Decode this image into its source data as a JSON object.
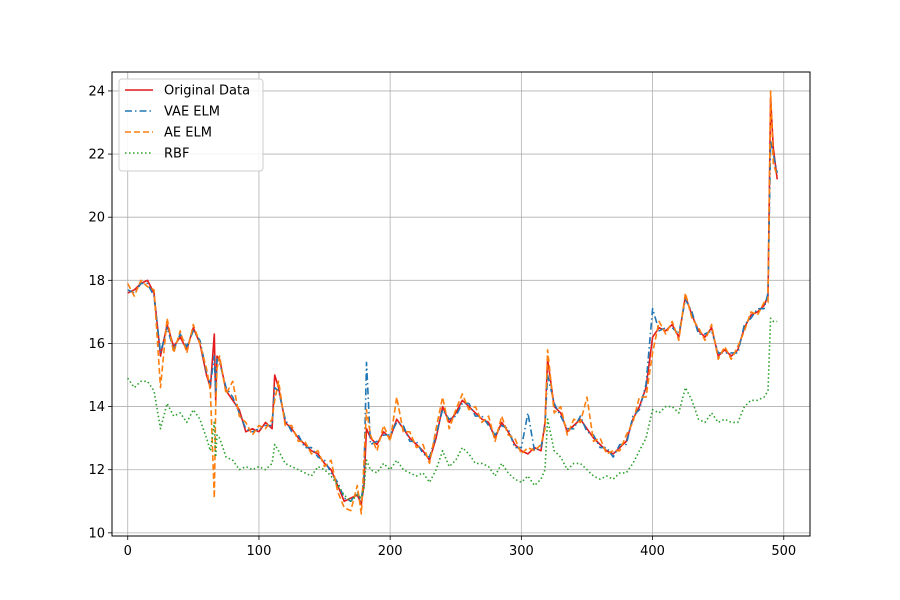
{
  "chart_data": {
    "type": "line",
    "title": "",
    "xlabel": "",
    "ylabel": "",
    "xlim": [
      -12,
      520
    ],
    "ylim": [
      9.9,
      24.6
    ],
    "xticks": [
      0,
      100,
      200,
      300,
      400,
      500
    ],
    "yticks": [
      10,
      12,
      14,
      16,
      18,
      20,
      22,
      24
    ],
    "grid": true,
    "legend_position": "upper-left",
    "x": [
      0,
      5,
      10,
      15,
      20,
      25,
      30,
      35,
      40,
      45,
      50,
      55,
      60,
      63,
      66,
      67,
      68,
      70,
      75,
      80,
      85,
      90,
      95,
      100,
      105,
      110,
      112,
      115,
      120,
      125,
      130,
      135,
      140,
      145,
      150,
      155,
      160,
      165,
      170,
      175,
      178,
      180,
      182,
      185,
      190,
      195,
      200,
      205,
      210,
      215,
      220,
      225,
      230,
      235,
      240,
      245,
      250,
      255,
      260,
      265,
      270,
      275,
      280,
      285,
      290,
      295,
      300,
      305,
      310,
      315,
      318,
      320,
      325,
      330,
      335,
      340,
      345,
      350,
      355,
      360,
      365,
      370,
      375,
      380,
      385,
      390,
      395,
      400,
      405,
      410,
      415,
      420,
      425,
      430,
      435,
      440,
      445,
      450,
      455,
      460,
      465,
      470,
      475,
      480,
      485,
      488,
      490,
      492,
      495
    ],
    "series": [
      {
        "name": "Original Data",
        "color": "#e41a1c",
        "dash": "solid",
        "values": [
          17.6,
          17.7,
          17.9,
          18.0,
          17.6,
          15.6,
          16.6,
          15.9,
          16.2,
          15.8,
          16.5,
          16.0,
          15.0,
          14.6,
          16.3,
          14.2,
          15.6,
          15.5,
          14.5,
          14.2,
          13.9,
          13.2,
          13.3,
          13.2,
          13.5,
          13.3,
          15.0,
          14.6,
          13.5,
          13.3,
          13.0,
          12.8,
          12.6,
          12.5,
          12.2,
          12.0,
          11.5,
          11.0,
          11.1,
          11.2,
          10.9,
          11.5,
          13.3,
          13.0,
          12.8,
          13.2,
          13.0,
          13.6,
          13.3,
          13.0,
          12.8,
          12.6,
          12.3,
          13.0,
          14.0,
          13.5,
          13.8,
          14.2,
          14.0,
          13.8,
          13.6,
          13.5,
          13.0,
          13.5,
          13.2,
          12.8,
          12.6,
          12.5,
          12.7,
          12.6,
          13.5,
          15.5,
          14.0,
          13.8,
          13.2,
          13.4,
          13.6,
          13.3,
          13.0,
          12.8,
          12.6,
          12.5,
          12.7,
          12.9,
          13.6,
          14.0,
          14.6,
          16.2,
          16.5,
          16.4,
          16.6,
          16.2,
          17.5,
          16.9,
          16.4,
          16.2,
          16.5,
          15.6,
          15.8,
          15.6,
          15.8,
          16.5,
          16.9,
          17.0,
          17.2,
          17.5,
          23.8,
          22.2,
          21.2
        ],
        "values_note": ""
      },
      {
        "name": "VAE ELM",
        "color": "#1f77b4",
        "dash": "dashdot",
        "values": [
          17.7,
          17.6,
          17.9,
          17.9,
          17.5,
          15.7,
          16.5,
          15.8,
          16.3,
          15.9,
          16.4,
          16.1,
          15.1,
          14.7,
          15.6,
          14.4,
          15.5,
          15.4,
          14.6,
          14.3,
          13.8,
          13.3,
          13.2,
          13.3,
          13.4,
          13.4,
          14.6,
          14.5,
          13.6,
          13.2,
          13.1,
          12.7,
          12.7,
          12.4,
          12.3,
          11.9,
          11.6,
          11.1,
          11.0,
          11.3,
          11.0,
          11.8,
          15.4,
          12.8,
          12.9,
          13.1,
          13.1,
          13.5,
          13.4,
          12.9,
          12.9,
          12.5,
          12.4,
          13.1,
          13.9,
          13.6,
          13.7,
          14.1,
          14.1,
          13.7,
          13.7,
          13.4,
          13.1,
          13.4,
          13.3,
          12.7,
          12.7,
          13.8,
          12.6,
          12.7,
          13.4,
          15.0,
          14.1,
          13.7,
          13.3,
          13.3,
          13.7,
          13.2,
          13.1,
          12.7,
          12.7,
          12.4,
          12.8,
          12.8,
          13.7,
          13.9,
          14.7,
          17.1,
          16.4,
          16.5,
          16.5,
          16.3,
          17.4,
          17.0,
          16.3,
          16.3,
          16.4,
          15.7,
          15.7,
          15.7,
          15.7,
          16.6,
          16.8,
          17.1,
          17.1,
          17.6,
          22.4,
          22.0,
          21.4
        ],
        "values_note": ""
      },
      {
        "name": "AE ELM",
        "color": "#ff7f0e",
        "dash": "dashed",
        "values": [
          17.9,
          17.5,
          18.0,
          17.8,
          17.7,
          14.6,
          16.8,
          15.7,
          16.4,
          15.7,
          16.6,
          16.0,
          15.2,
          14.5,
          11.1,
          14.0,
          15.2,
          15.6,
          14.4,
          14.8,
          13.7,
          13.5,
          13.1,
          13.4,
          13.3,
          13.6,
          14.2,
          14.8,
          13.4,
          13.4,
          12.9,
          12.9,
          12.5,
          12.6,
          12.1,
          12.3,
          11.3,
          10.8,
          10.7,
          11.5,
          10.6,
          12.2,
          13.9,
          13.1,
          12.6,
          13.4,
          12.9,
          14.3,
          13.2,
          13.2,
          12.7,
          12.8,
          12.2,
          13.3,
          14.3,
          13.3,
          13.9,
          14.4,
          13.9,
          14.0,
          13.5,
          13.7,
          12.9,
          13.7,
          13.1,
          13.0,
          12.5,
          12.7,
          12.6,
          12.8,
          13.3,
          15.8,
          13.8,
          14.0,
          13.1,
          13.6,
          13.5,
          14.3,
          12.9,
          13.0,
          12.5,
          12.6,
          12.6,
          13.1,
          13.5,
          14.3,
          14.3,
          15.7,
          16.7,
          16.3,
          16.7,
          16.1,
          17.6,
          16.8,
          16.5,
          16.1,
          16.6,
          15.5,
          15.9,
          15.5,
          15.9,
          16.4,
          17.0,
          16.9,
          17.3,
          17.3,
          24.0,
          21.7,
          21.3
        ],
        "values_note": ""
      },
      {
        "name": "RBF",
        "color": "#2ca02c",
        "dash": "dotted",
        "values": [
          14.9,
          14.6,
          14.8,
          14.8,
          14.5,
          13.3,
          14.1,
          13.7,
          13.8,
          13.5,
          13.9,
          13.6,
          13.0,
          12.6,
          13.5,
          12.4,
          13.1,
          13.0,
          12.4,
          12.3,
          12.0,
          12.1,
          12.0,
          12.1,
          12.0,
          12.2,
          12.8,
          12.6,
          12.2,
          12.1,
          12.0,
          11.9,
          11.8,
          12.1,
          12.0,
          11.8,
          11.5,
          11.2,
          11.0,
          11.2,
          11.1,
          11.4,
          12.3,
          12.0,
          11.9,
          12.2,
          12.0,
          12.3,
          12.0,
          11.9,
          11.8,
          11.9,
          11.6,
          12.0,
          12.6,
          12.1,
          12.3,
          12.7,
          12.5,
          12.2,
          12.2,
          12.1,
          11.8,
          12.2,
          11.9,
          11.7,
          11.6,
          11.8,
          11.5,
          11.7,
          12.0,
          13.6,
          12.6,
          12.4,
          12.0,
          12.2,
          12.2,
          12.0,
          11.8,
          11.7,
          11.8,
          11.7,
          11.9,
          11.9,
          12.2,
          12.6,
          13.0,
          13.9,
          13.8,
          14.0,
          14.0,
          13.8,
          14.6,
          14.2,
          13.6,
          13.5,
          13.8,
          13.5,
          13.6,
          13.5,
          13.5,
          14.0,
          14.2,
          14.2,
          14.3,
          14.5,
          16.8,
          16.7,
          16.7
        ],
        "values_note": ""
      }
    ]
  }
}
